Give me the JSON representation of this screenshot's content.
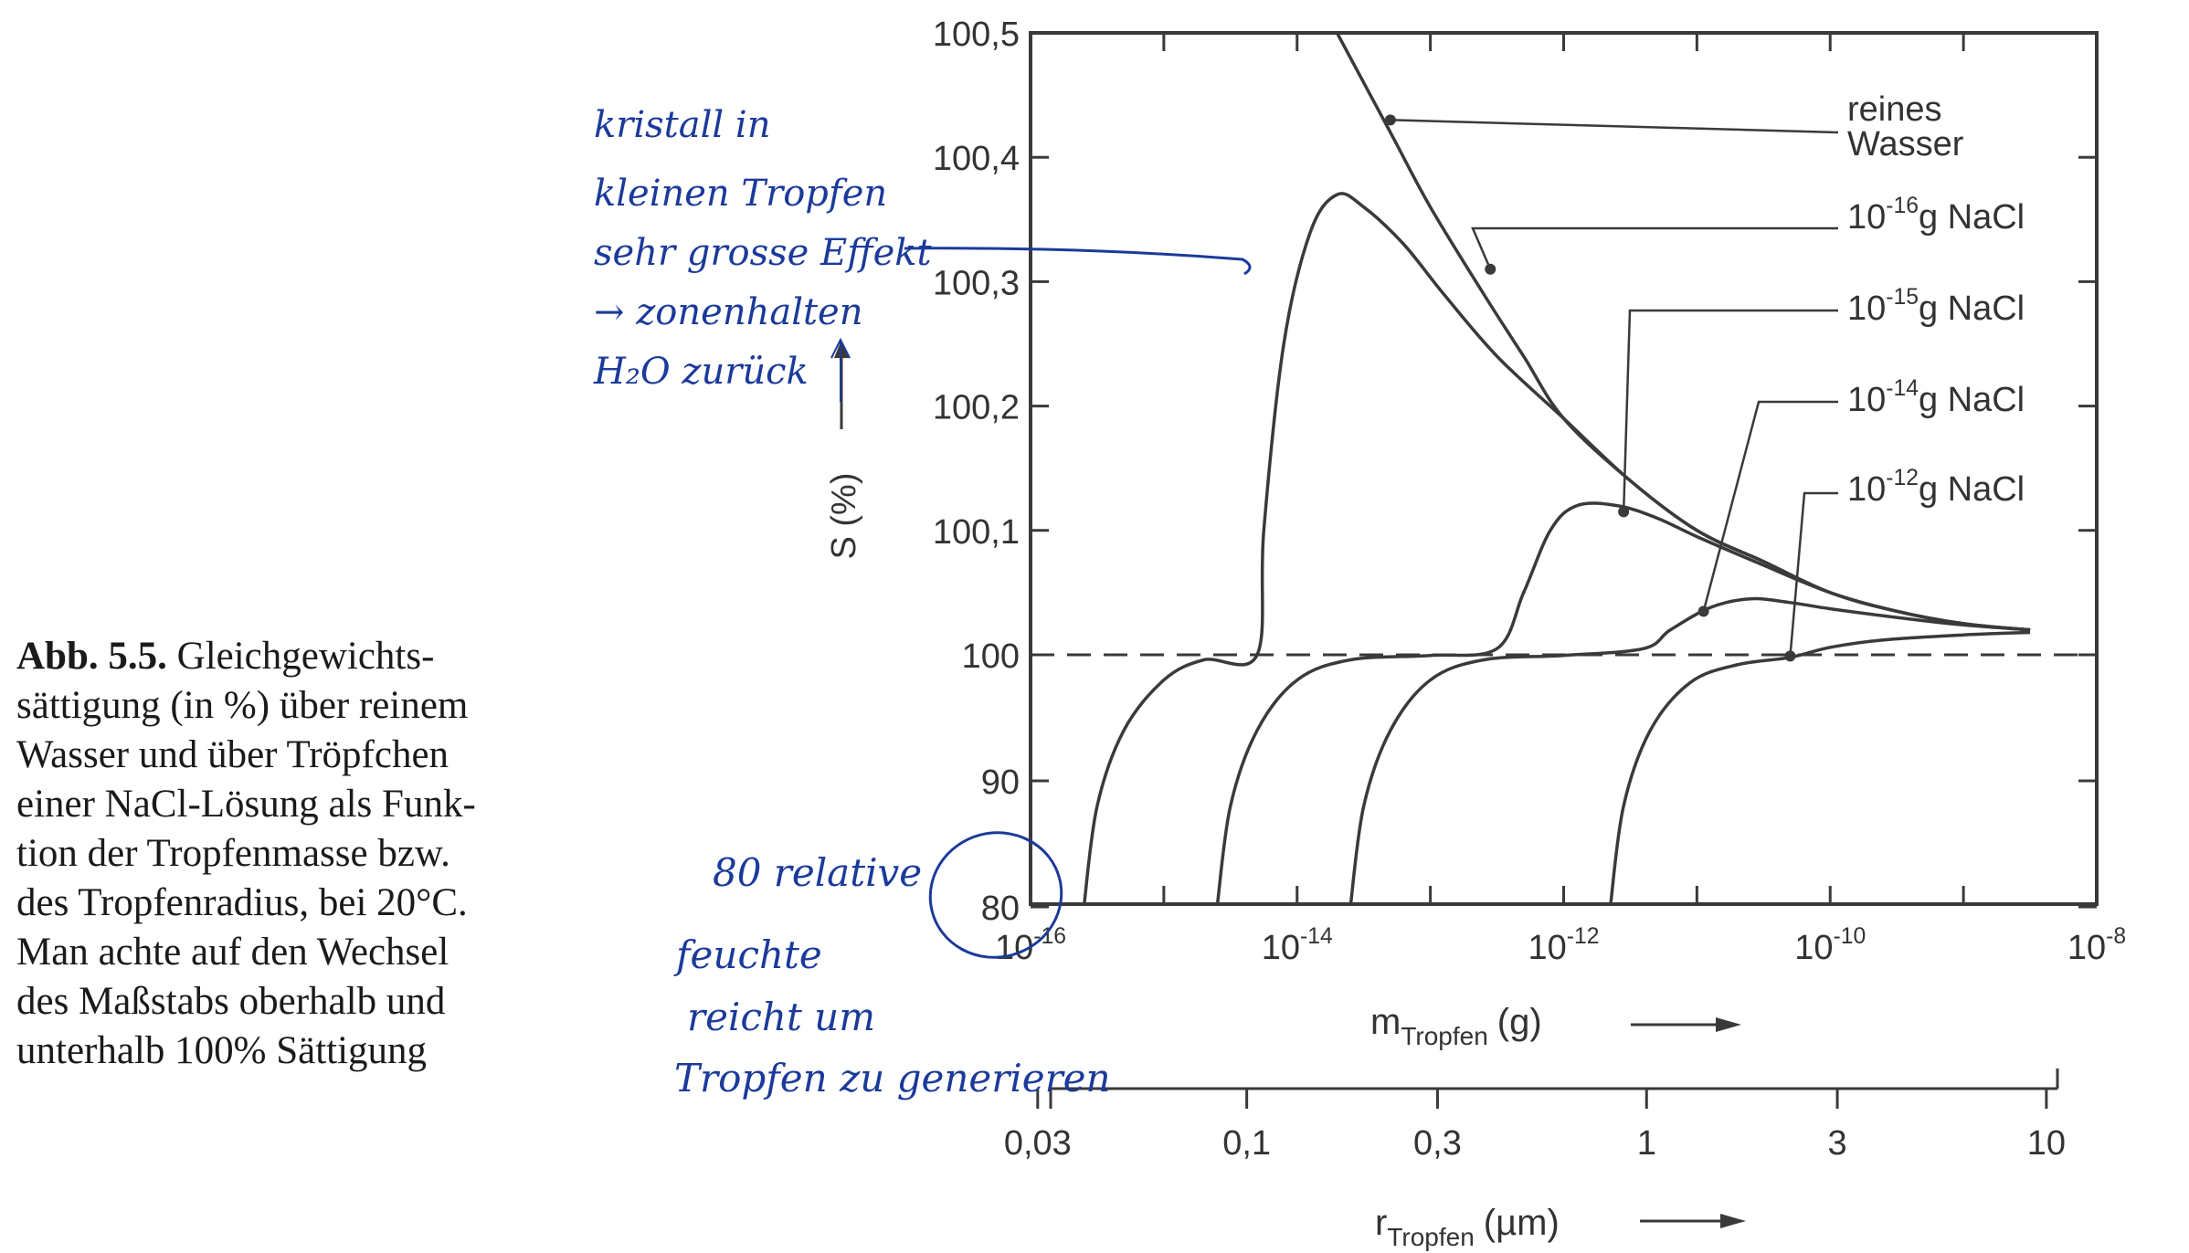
{
  "caption": {
    "lines": [
      {
        "bold": "Abb. 5.5.",
        "text": " Gleichgewichts-"
      },
      {
        "bold": "",
        "text": "sättigung (in %) über reinem"
      },
      {
        "bold": "",
        "text": "Wasser und über Tröpfchen"
      },
      {
        "bold": "",
        "text": "einer NaCl-Lösung als Funk-"
      },
      {
        "bold": "",
        "text": "tion der Tropfenmasse bzw."
      },
      {
        "bold": "",
        "text": "des Tropfenradius, bei 20°C."
      },
      {
        "bold": "",
        "text": "Man achte auf den Wechsel"
      },
      {
        "bold": "",
        "text": "des Maßstabs oberhalb und"
      },
      {
        "bold": "",
        "text": "unterhalb 100% Sättigung"
      }
    ]
  },
  "chart_data": {
    "type": "line",
    "ylabel": "S (%)",
    "y_ticks_upper": [
      "100,5",
      "100,4",
      "100,3",
      "100,2",
      "100,1",
      "100"
    ],
    "y_ticks_lower": [
      "90",
      "80"
    ],
    "y_scale_note": "Maßstabswechsel bei 100 %",
    "x_axis_mass": {
      "label_main": "m",
      "label_sub": "Tropfen",
      "unit": "(g)",
      "ticks": [
        {
          "base": "10",
          "exp": "-16"
        },
        {
          "base": "10",
          "exp": "-14"
        },
        {
          "base": "10",
          "exp": "-12"
        },
        {
          "base": "10",
          "exp": "-10"
        },
        {
          "base": "10",
          "exp": "-8"
        }
      ],
      "log_range": [
        -16,
        -8
      ]
    },
    "x_axis_radius": {
      "label_main": "r",
      "label_sub": "Tropfen",
      "unit": "(µm)",
      "ticks": [
        "0,03",
        "0,1",
        "0,3",
        "1",
        "3",
        "10"
      ]
    },
    "saturation_line": 100,
    "series": [
      {
        "name": "reines Wasser",
        "label_main": "reines",
        "label_second": "Wasser",
        "points": [
          [
            -13.7,
            100.5
          ],
          [
            -13.3,
            100.42
          ],
          [
            -13.0,
            100.36
          ],
          [
            -12.6,
            100.29
          ],
          [
            -12.3,
            100.24
          ],
          [
            -12.0,
            100.19
          ],
          [
            -11.5,
            100.14
          ],
          [
            -11.0,
            100.1
          ],
          [
            -10.5,
            100.075
          ],
          [
            -10.0,
            100.05
          ],
          [
            -9.5,
            100.035
          ],
          [
            -9.0,
            100.025
          ],
          [
            -8.5,
            100.02
          ]
        ]
      },
      {
        "name": "10-16 g NaCl",
        "label_base": "10",
        "label_exp": "-16",
        "label_unit": "g NaCl",
        "points": [
          [
            -15.6,
            80
          ],
          [
            -15.5,
            88
          ],
          [
            -15.3,
            94
          ],
          [
            -15.0,
            98
          ],
          [
            -14.7,
            99.6
          ],
          [
            -14.3,
            100
          ],
          [
            -14.25,
            100.1
          ],
          [
            -14.1,
            100.25
          ],
          [
            -13.9,
            100.34
          ],
          [
            -13.7,
            100.37
          ],
          [
            -13.5,
            100.36
          ],
          [
            -13.2,
            100.33
          ],
          [
            -12.9,
            100.29
          ],
          [
            -12.5,
            100.24
          ],
          [
            -12.0,
            100.19
          ],
          [
            -11.5,
            100.14
          ],
          [
            -11.0,
            100.1
          ],
          [
            -10.5,
            100.075
          ],
          [
            -10.0,
            100.05
          ],
          [
            -9.5,
            100.035
          ],
          [
            -9.0,
            100.025
          ],
          [
            -8.5,
            100.02
          ]
        ]
      },
      {
        "name": "10-15 g NaCl",
        "label_base": "10",
        "label_exp": "-15",
        "label_unit": "g NaCl",
        "points": [
          [
            -14.6,
            80
          ],
          [
            -14.5,
            88
          ],
          [
            -14.3,
            94
          ],
          [
            -14.0,
            98
          ],
          [
            -13.6,
            99.6
          ],
          [
            -13.0,
            99.95
          ],
          [
            -12.5,
            100.005
          ],
          [
            -12.3,
            100.05
          ],
          [
            -12.1,
            100.1
          ],
          [
            -11.9,
            100.12
          ],
          [
            -11.6,
            100.12
          ],
          [
            -11.3,
            100.11
          ],
          [
            -11.0,
            100.095
          ],
          [
            -10.5,
            100.072
          ],
          [
            -10.0,
            100.05
          ],
          [
            -9.5,
            100.035
          ],
          [
            -9.0,
            100.025
          ],
          [
            -8.5,
            100.02
          ]
        ]
      },
      {
        "name": "10-14 g NaCl",
        "label_base": "10",
        "label_exp": "-14",
        "label_unit": "g NaCl",
        "points": [
          [
            -13.6,
            80
          ],
          [
            -13.5,
            88
          ],
          [
            -13.3,
            94
          ],
          [
            -13.0,
            98
          ],
          [
            -12.6,
            99.6
          ],
          [
            -12.0,
            99.95
          ],
          [
            -11.4,
            100.005
          ],
          [
            -11.2,
            100.02
          ],
          [
            -10.9,
            100.038
          ],
          [
            -10.6,
            100.045
          ],
          [
            -10.3,
            100.042
          ],
          [
            -10.0,
            100.037
          ],
          [
            -9.5,
            100.03
          ],
          [
            -9.0,
            100.024
          ],
          [
            -8.5,
            100.02
          ]
        ]
      },
      {
        "name": "10-12 g NaCl",
        "label_base": "10",
        "label_exp": "-12",
        "label_unit": "g NaCl",
        "points": [
          [
            -11.65,
            80
          ],
          [
            -11.55,
            88
          ],
          [
            -11.35,
            94
          ],
          [
            -11.05,
            97.8
          ],
          [
            -10.7,
            99.2
          ],
          [
            -10.3,
            99.8
          ],
          [
            -10.0,
            100.006
          ],
          [
            -9.6,
            100.012
          ],
          [
            -9.0,
            100.016
          ],
          [
            -8.5,
            100.018
          ]
        ]
      }
    ],
    "markers": [
      {
        "series": "reines Wasser",
        "x": -13.3,
        "y": 100.43
      },
      {
        "series": "10-16 g NaCl",
        "x": -12.55,
        "y": 100.31
      },
      {
        "series": "10-15 g NaCl",
        "x": -11.55,
        "y": 100.115
      },
      {
        "series": "10-14 g NaCl",
        "x": -10.95,
        "y": 100.035
      },
      {
        "series": "10-12 g NaCl",
        "x": -10.3,
        "y": 99.9
      }
    ],
    "grid": false,
    "legend": "right, labels with leader lines"
  },
  "annotations": {
    "note_top": [
      "kristall in",
      "kleinen Tropfen",
      "sehr grosse Effekt",
      "→ zonenhalten",
      "H₂O zurück"
    ],
    "note_bottom": [
      "80 relative",
      "feuchte",
      "reicht um",
      "Tropfen zu generieren"
    ]
  },
  "colors": {
    "ink": "#3a3a3a",
    "handwriting": "#1b3a9a",
    "caption_text": "#1a1a1a"
  }
}
